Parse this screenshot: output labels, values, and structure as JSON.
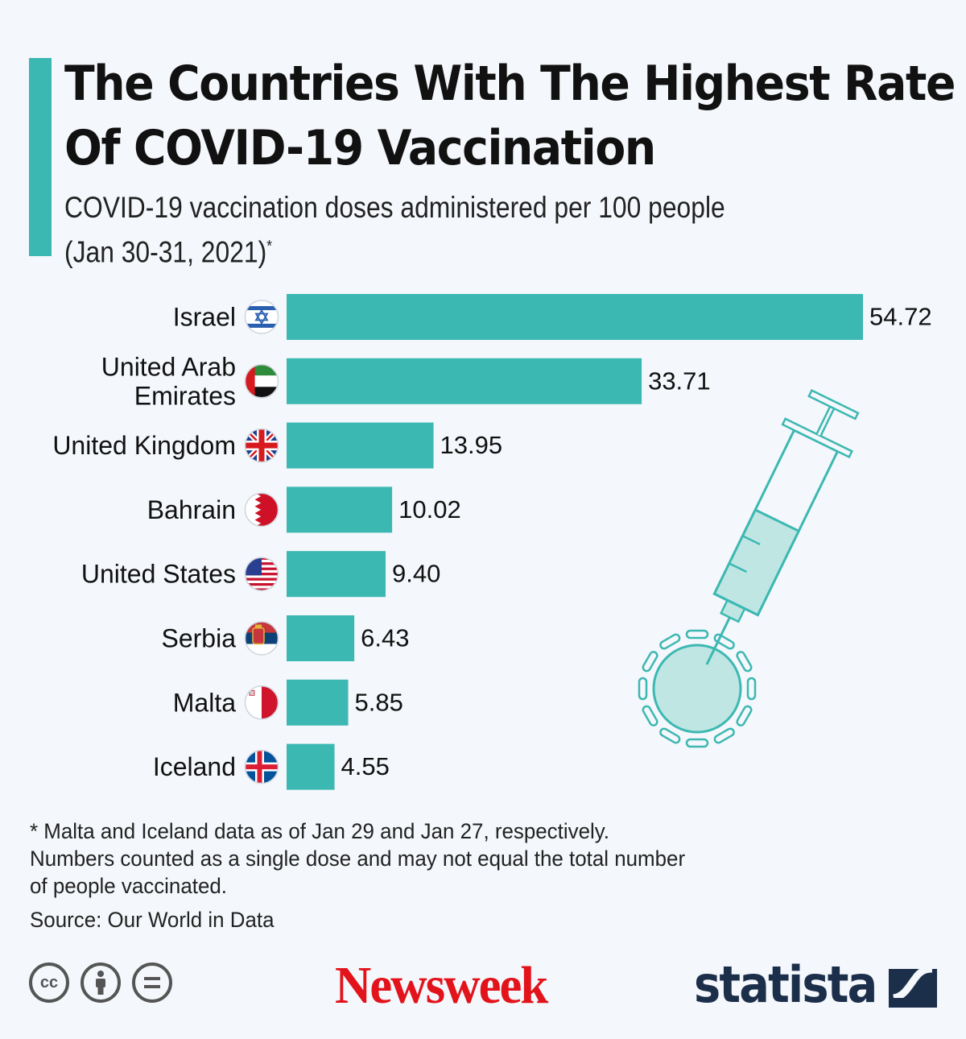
{
  "title_lines": [
    "The Countries With The Highest Rate",
    "Of COVID-19 Vaccination"
  ],
  "subtitle_lines": [
    "COVID-19 vaccination doses administered per 100 people",
    "(Jan 30-31, 2021)"
  ],
  "subtitle_mark": "*",
  "chart_data": {
    "type": "bar",
    "orientation": "horizontal",
    "title": "The Countries With The Highest Rate Of COVID-19 Vaccination",
    "xlabel": "",
    "ylabel": "",
    "categories": [
      "Israel",
      "United Arab Emirates",
      "United Kingdom",
      "Bahrain",
      "United States",
      "Serbia",
      "Malta",
      "Iceland"
    ],
    "category_lines": [
      [
        "Israel"
      ],
      [
        "United Arab",
        "Emirates"
      ],
      [
        "United Kingdom"
      ],
      [
        "Bahrain"
      ],
      [
        "United States"
      ],
      [
        "Serbia"
      ],
      [
        "Malta"
      ],
      [
        "Iceland"
      ]
    ],
    "value_labels": [
      "54.72",
      "33.71",
      "13.95",
      "10.02",
      "9.40",
      "6.43",
      "5.85",
      "4.55"
    ],
    "values": [
      54.72,
      33.71,
      13.95,
      10.02,
      9.4,
      6.43,
      5.85,
      4.55
    ],
    "xlim": [
      0,
      54.72
    ],
    "grid": false,
    "bar_color": "#3cb8b2",
    "flag_icons": [
      "israel-flag-icon",
      "uae-flag-icon",
      "uk-flag-icon",
      "bahrain-flag-icon",
      "usa-flag-icon",
      "serbia-flag-icon",
      "malta-flag-icon",
      "iceland-flag-icon"
    ]
  },
  "footnote_lines": [
    "* Malta and Iceland data as of Jan 29 and Jan 27, respectively.",
    "Numbers counted as a single dose and may not equal the total number",
    "of people vaccinated."
  ],
  "source": "Source: Our World in Data",
  "license_icons": [
    "cc-icon",
    "attribution-icon",
    "no-derivatives-icon"
  ],
  "brands": {
    "newsweek": "Newsweek",
    "statista": "statista"
  },
  "colors": {
    "accent": "#3cb8b2",
    "newsweek_red": "#e2131a",
    "statista_navy": "#1c2f4a",
    "background": "#f4f7fb"
  }
}
